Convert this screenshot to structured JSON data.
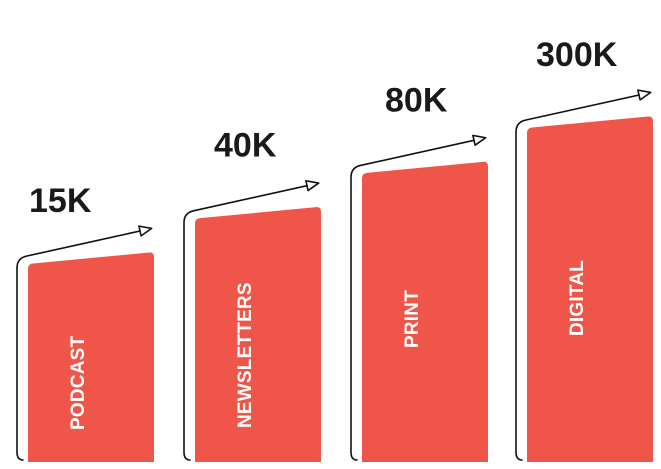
{
  "chart_data": {
    "type": "bar",
    "categories": [
      "PODCAST",
      "NEWSLETTERS",
      "PRINT",
      "DIGITAL"
    ],
    "value_labels": [
      "15K",
      "40K",
      "80K",
      "300K"
    ],
    "values": [
      15000,
      40000,
      80000,
      300000
    ],
    "title": "",
    "xlabel": "",
    "ylabel": "",
    "grid": false,
    "legend": "none",
    "colors": {
      "bar": "#f0554a",
      "text": "#1a1a1a",
      "bar_text": "#ffffff",
      "arrow": "#111111"
    }
  }
}
